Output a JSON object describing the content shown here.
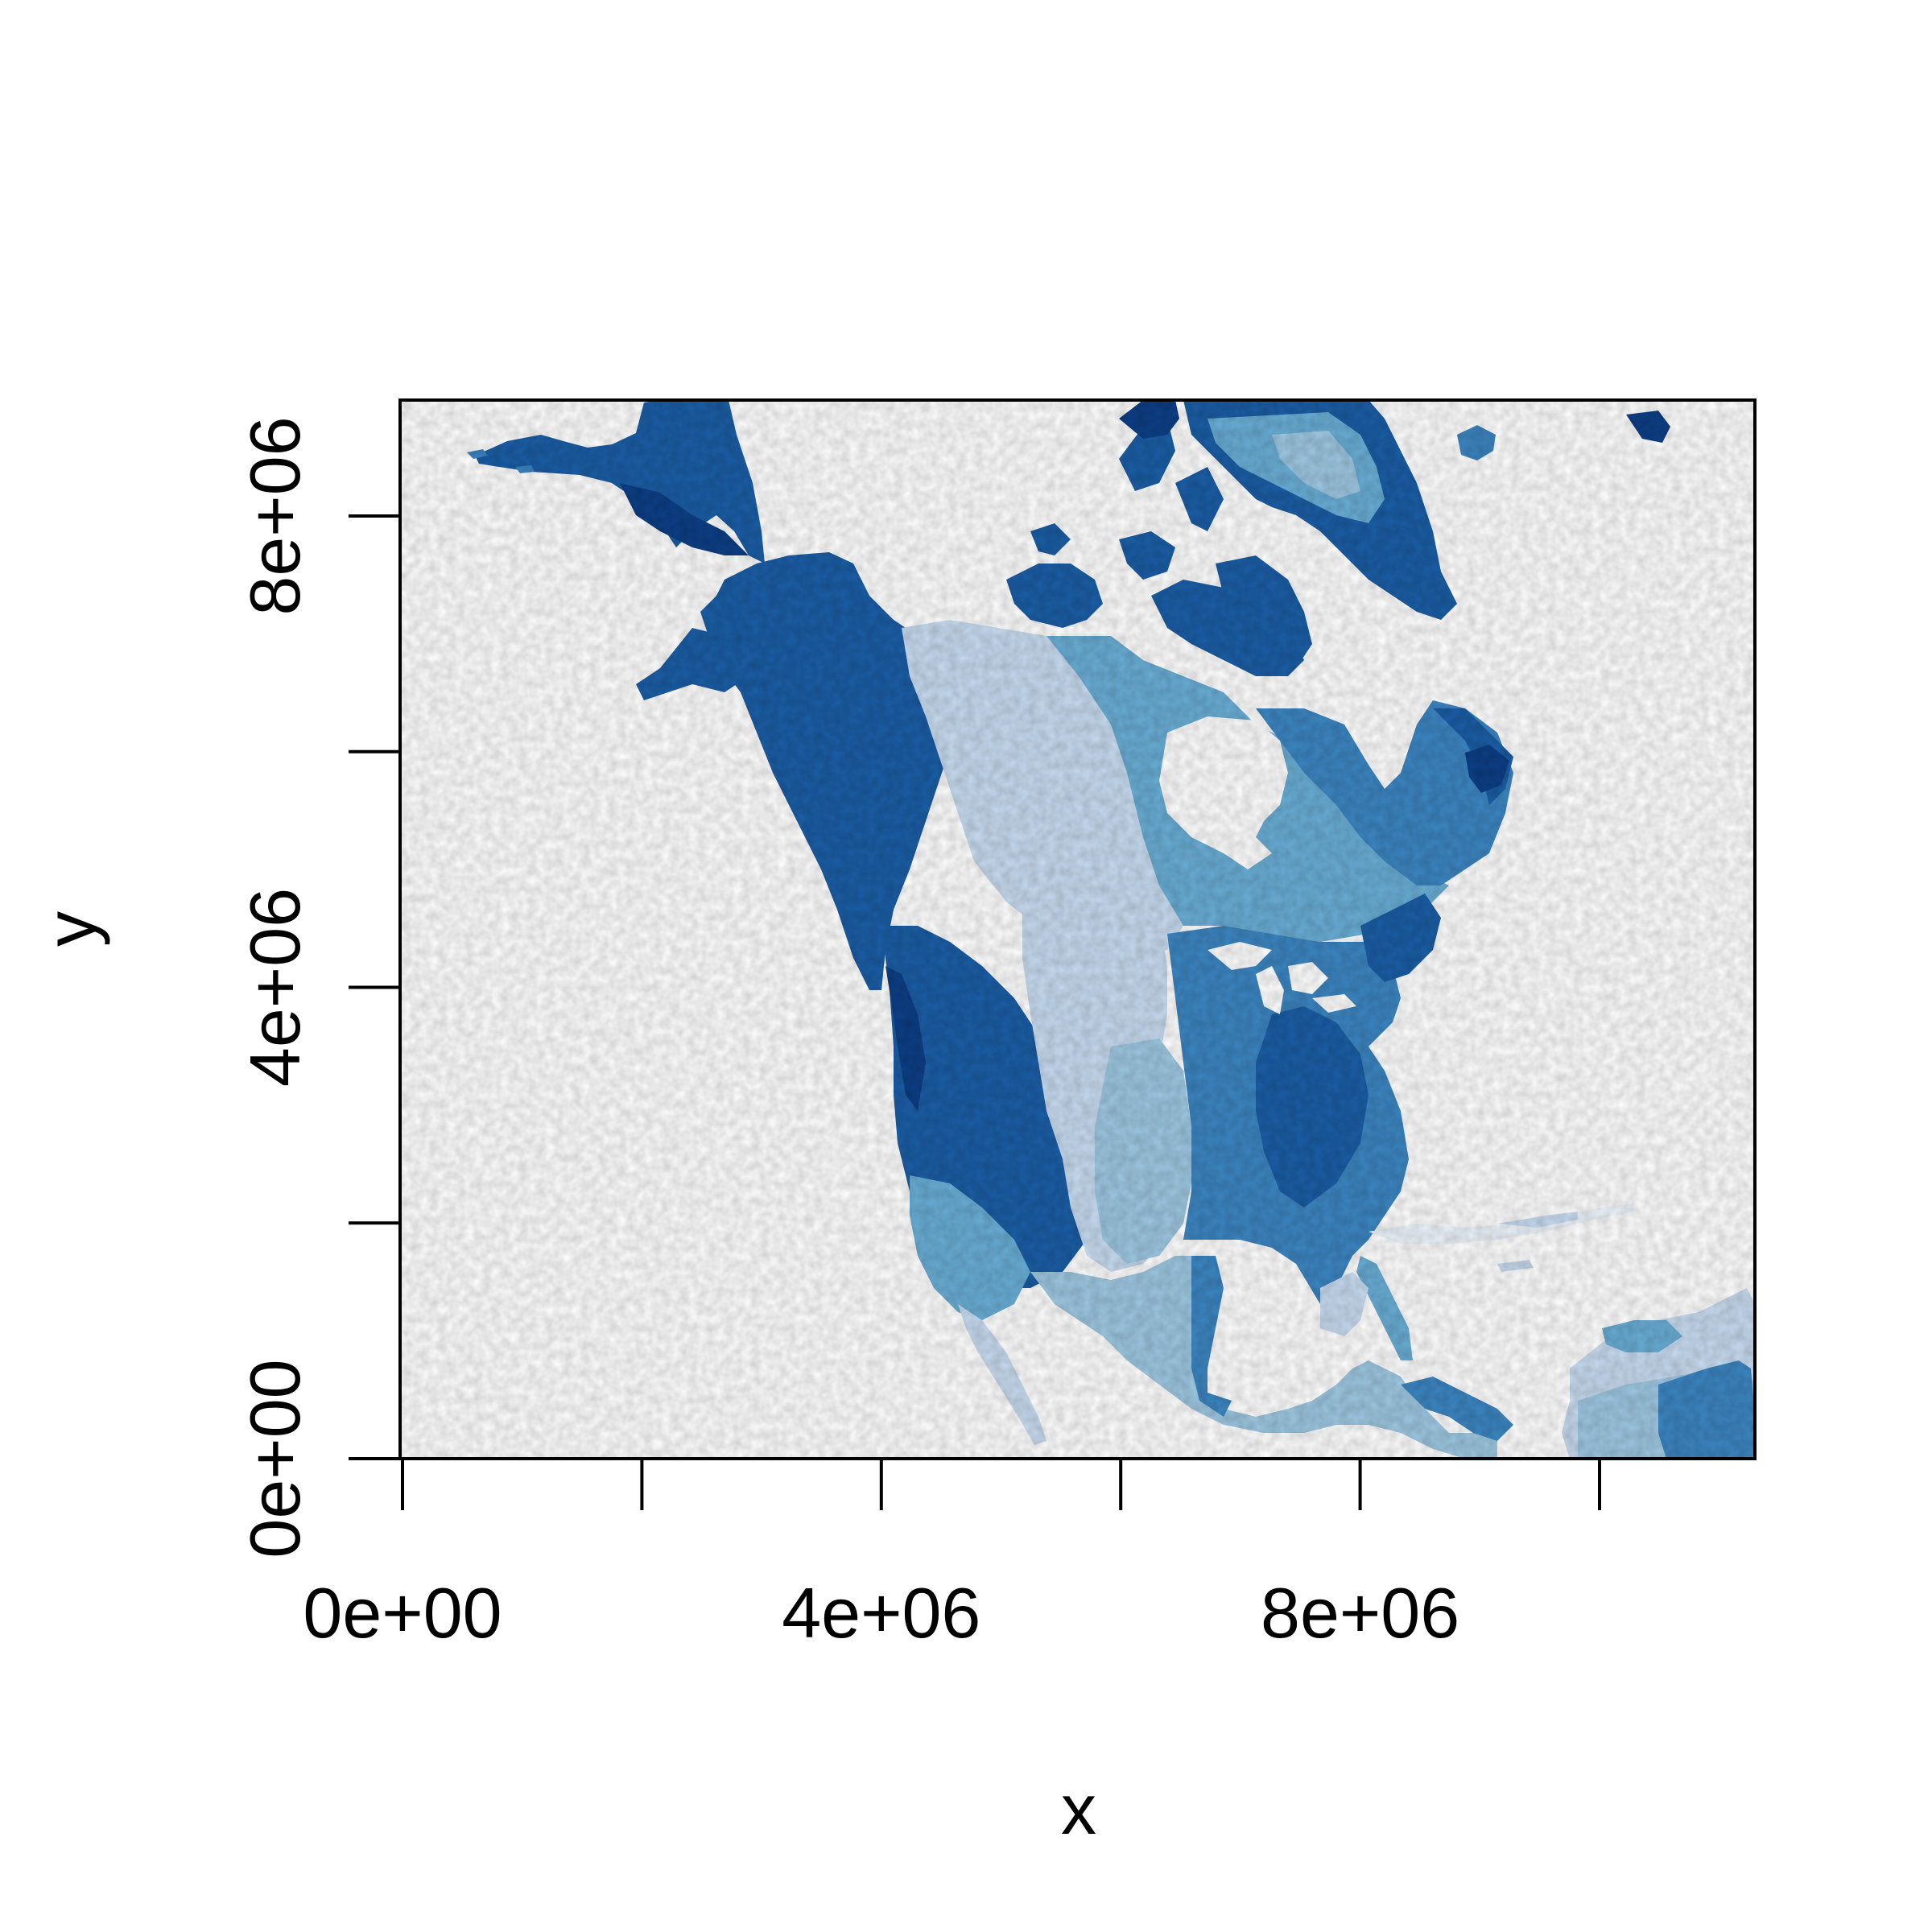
{
  "chart_data": {
    "type": "heatmap",
    "title": "",
    "xlabel": "x",
    "ylabel": "y",
    "xlim": [
      0,
      11300000
    ],
    "ylim": [
      0,
      9000000
    ],
    "x_ticks": [
      0,
      2000000,
      4000000,
      6000000,
      8000000,
      10000000
    ],
    "y_ticks": [
      0,
      2000000,
      4000000,
      6000000,
      8000000
    ],
    "x_tick_labels": [
      "0e+00",
      "",
      "4e+06",
      "",
      "8e+06",
      ""
    ],
    "y_tick_labels": [
      "0e+00",
      "",
      "4e+06",
      "",
      "8e+06"
    ],
    "grid": false,
    "legend": "none",
    "palette": [
      "#eef5fc",
      "#c8dcf0",
      "#9ec8e2",
      "#6aaed6",
      "#3c86c2",
      "#1b5ea6",
      "#0d3f86"
    ]
  }
}
